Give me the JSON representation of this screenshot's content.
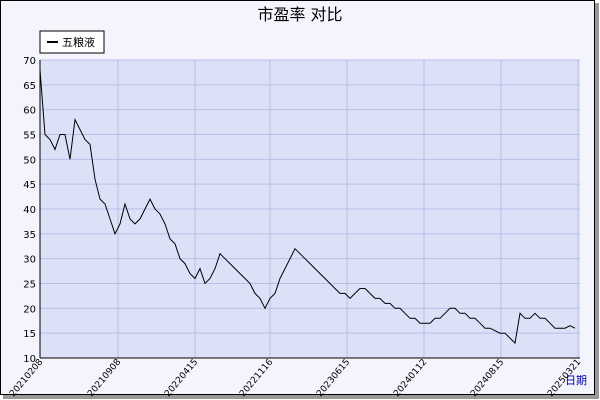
{
  "chart_data": {
    "type": "line",
    "title": "市盈率  对比",
    "x_label": "日期",
    "series": [
      {
        "name": "五粮液",
        "color": "#000000",
        "values": [
          68,
          55,
          54,
          52,
          55,
          55,
          50,
          58,
          56,
          54,
          53,
          46,
          42,
          41,
          38,
          35,
          37,
          41,
          38,
          37,
          38,
          40,
          42,
          40,
          39,
          37,
          34,
          33,
          30,
          29,
          27,
          26,
          28,
          25,
          26,
          28,
          31,
          30,
          29,
          28,
          27,
          26,
          25,
          23,
          22,
          20,
          22,
          23,
          26,
          28,
          30,
          32,
          31,
          30,
          29,
          28,
          27,
          26,
          25,
          24,
          23,
          23,
          22,
          23,
          24,
          24,
          23,
          22,
          22,
          21,
          21,
          20,
          20,
          19,
          18,
          18,
          17,
          17,
          17,
          18,
          18,
          19,
          20,
          20,
          19,
          19,
          18,
          18,
          17,
          16,
          16,
          15.5,
          15,
          15,
          14,
          13,
          19,
          18,
          18,
          19,
          18,
          18,
          17,
          16,
          16,
          16,
          16.5,
          16
        ]
      }
    ],
    "xlim": [
      0,
      108
    ],
    "xticks": [
      {
        "value": 0,
        "label": "20210208"
      },
      {
        "value": 15.6,
        "label": "20210908"
      },
      {
        "value": 31,
        "label": "20220415"
      },
      {
        "value": 46,
        "label": "20221116"
      },
      {
        "value": 61.4,
        "label": "20230615"
      },
      {
        "value": 76.8,
        "label": "20240112"
      },
      {
        "value": 92.2,
        "label": "20240815"
      },
      {
        "value": 107.6,
        "label": "20250321"
      }
    ],
    "ylim": [
      10,
      70
    ],
    "yticks": [
      10,
      15,
      20,
      25,
      30,
      35,
      40,
      45,
      50,
      55,
      60,
      65,
      70
    ],
    "grid": true,
    "legend": "top-left"
  }
}
